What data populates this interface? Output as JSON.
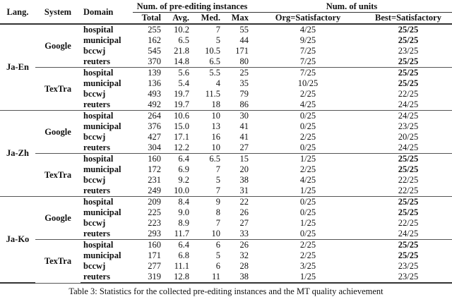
{
  "headers": {
    "lang": "Lang.",
    "system": "System",
    "domain": "Domain",
    "group_instances": "Num. of pre-editing instances",
    "group_units": "Num. of units",
    "total": "Total",
    "avg": "Avg.",
    "med": "Med.",
    "max": "Max",
    "org": "Org=Satisfactory",
    "best": "Best=Satisfactory"
  },
  "groups": [
    {
      "lang": "Ja-En",
      "systems": [
        {
          "system": "Google",
          "rows": [
            {
              "domain": "hospital",
              "total": "255",
              "avg": "10.2",
              "med": "7",
              "max": "55",
              "org": "4/25",
              "best": "25/25",
              "best_bold": true
            },
            {
              "domain": "municipal",
              "total": "162",
              "avg": "6.5",
              "med": "5",
              "max": "44",
              "org": "9/25",
              "best": "25/25",
              "best_bold": true
            },
            {
              "domain": "bccwj",
              "total": "545",
              "avg": "21.8",
              "med": "10.5",
              "max": "171",
              "org": "7/25",
              "best": "23/25",
              "best_bold": false
            },
            {
              "domain": "reuters",
              "total": "370",
              "avg": "14.8",
              "med": "6.5",
              "max": "80",
              "org": "7/25",
              "best": "25/25",
              "best_bold": true
            }
          ]
        },
        {
          "system": "TexTra",
          "rows": [
            {
              "domain": "hospital",
              "total": "139",
              "avg": "5.6",
              "med": "5.5",
              "max": "25",
              "org": "7/25",
              "best": "25/25",
              "best_bold": true
            },
            {
              "domain": "municipal",
              "total": "136",
              "avg": "5.4",
              "med": "4",
              "max": "35",
              "org": "10/25",
              "best": "25/25",
              "best_bold": true
            },
            {
              "domain": "bccwj",
              "total": "493",
              "avg": "19.7",
              "med": "11.5",
              "max": "79",
              "org": "2/25",
              "best": "22/25",
              "best_bold": false
            },
            {
              "domain": "reuters",
              "total": "492",
              "avg": "19.7",
              "med": "18",
              "max": "86",
              "org": "4/25",
              "best": "24/25",
              "best_bold": false
            }
          ]
        }
      ]
    },
    {
      "lang": "Ja-Zh",
      "systems": [
        {
          "system": "Google",
          "rows": [
            {
              "domain": "hospital",
              "total": "264",
              "avg": "10.6",
              "med": "10",
              "max": "30",
              "org": "0/25",
              "best": "24/25",
              "best_bold": false
            },
            {
              "domain": "municipal",
              "total": "376",
              "avg": "15.0",
              "med": "13",
              "max": "41",
              "org": "0/25",
              "best": "23/25",
              "best_bold": false
            },
            {
              "domain": "bccwj",
              "total": "427",
              "avg": "17.1",
              "med": "16",
              "max": "41",
              "org": "2/25",
              "best": "20/25",
              "best_bold": false
            },
            {
              "domain": "reuters",
              "total": "304",
              "avg": "12.2",
              "med": "10",
              "max": "27",
              "org": "0/25",
              "best": "24/25",
              "best_bold": false
            }
          ]
        },
        {
          "system": "TexTra",
          "rows": [
            {
              "domain": "hospital",
              "total": "160",
              "avg": "6.4",
              "med": "6.5",
              "max": "15",
              "org": "1/25",
              "best": "25/25",
              "best_bold": true
            },
            {
              "domain": "municipal",
              "total": "172",
              "avg": "6.9",
              "med": "7",
              "max": "20",
              "org": "2/25",
              "best": "25/25",
              "best_bold": true
            },
            {
              "domain": "bccwj",
              "total": "231",
              "avg": "9.2",
              "med": "5",
              "max": "38",
              "org": "4/25",
              "best": "22/25",
              "best_bold": false
            },
            {
              "domain": "reuters",
              "total": "249",
              "avg": "10.0",
              "med": "7",
              "max": "31",
              "org": "1/25",
              "best": "22/25",
              "best_bold": false
            }
          ]
        }
      ]
    },
    {
      "lang": "Ja-Ko",
      "systems": [
        {
          "system": "Google",
          "rows": [
            {
              "domain": "hospital",
              "total": "209",
              "avg": "8.4",
              "med": "9",
              "max": "22",
              "org": "0/25",
              "best": "25/25",
              "best_bold": true
            },
            {
              "domain": "municipal",
              "total": "225",
              "avg": "9.0",
              "med": "8",
              "max": "26",
              "org": "0/25",
              "best": "25/25",
              "best_bold": true
            },
            {
              "domain": "bccwj",
              "total": "223",
              "avg": "8.9",
              "med": "7",
              "max": "27",
              "org": "1/25",
              "best": "22/25",
              "best_bold": false
            },
            {
              "domain": "reuters",
              "total": "293",
              "avg": "11.7",
              "med": "10",
              "max": "33",
              "org": "0/25",
              "best": "24/25",
              "best_bold": false
            }
          ]
        },
        {
          "system": "TexTra",
          "rows": [
            {
              "domain": "hospital",
              "total": "160",
              "avg": "6.4",
              "med": "6",
              "max": "26",
              "org": "2/25",
              "best": "25/25",
              "best_bold": true
            },
            {
              "domain": "municipal",
              "total": "171",
              "avg": "6.8",
              "med": "5",
              "max": "32",
              "org": "2/25",
              "best": "25/25",
              "best_bold": true
            },
            {
              "domain": "bccwj",
              "total": "277",
              "avg": "11.1",
              "med": "6",
              "max": "28",
              "org": "3/25",
              "best": "23/25",
              "best_bold": false
            },
            {
              "domain": "reuters",
              "total": "319",
              "avg": "12.8",
              "med": "11",
              "max": "38",
              "org": "1/25",
              "best": "23/25",
              "best_bold": false
            }
          ]
        }
      ]
    }
  ],
  "caption": "Table 3: Statistics for the collected pre-editing instances and the MT quality achievement"
}
